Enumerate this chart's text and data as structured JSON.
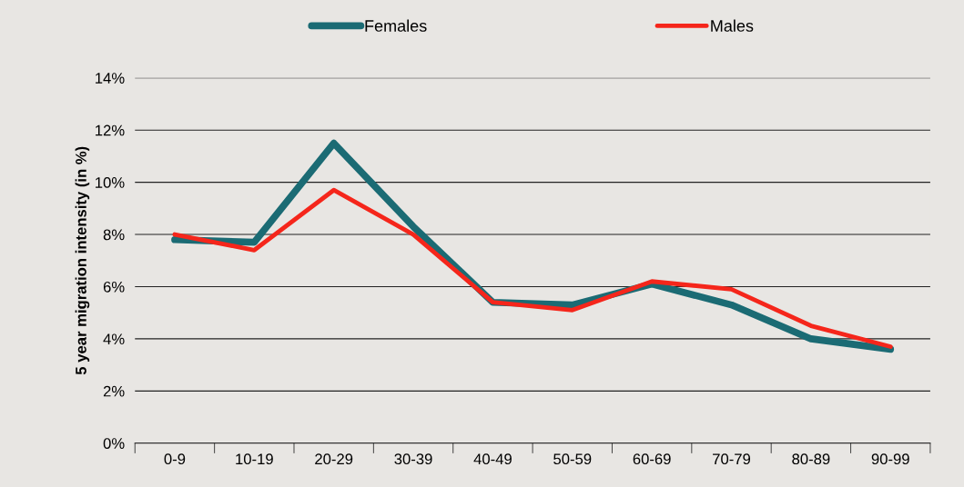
{
  "chart_data": {
    "type": "line",
    "ylabel": "5 year migration intensity (in %)",
    "categories": [
      "0-9",
      "10-19",
      "20-29",
      "30-39",
      "40-49",
      "50-59",
      "60-69",
      "70-79",
      "80-89",
      "90-99"
    ],
    "series": [
      {
        "name": "Females",
        "color": "#1b6b74",
        "values": [
          7.8,
          7.7,
          11.5,
          8.3,
          5.4,
          5.3,
          6.1,
          5.3,
          4.0,
          3.6
        ]
      },
      {
        "name": "Males",
        "color": "#f5261b",
        "values": [
          8.0,
          7.4,
          9.7,
          8.0,
          5.4,
          5.1,
          6.2,
          5.9,
          4.5,
          3.7
        ]
      }
    ],
    "ylim": [
      0,
      14
    ],
    "yticks": [
      {
        "value": 0,
        "label": "0%"
      },
      {
        "value": 2,
        "label": "2%"
      },
      {
        "value": 4,
        "label": "4%"
      },
      {
        "value": 6,
        "label": "6%"
      },
      {
        "value": 8,
        "label": "8%"
      },
      {
        "value": 10,
        "label": "10%"
      },
      {
        "value": 12,
        "label": "12%"
      },
      {
        "value": 14,
        "label": "14%"
      }
    ],
    "grid": "y",
    "legend": "top",
    "marker": "none",
    "line_style": "solid"
  }
}
